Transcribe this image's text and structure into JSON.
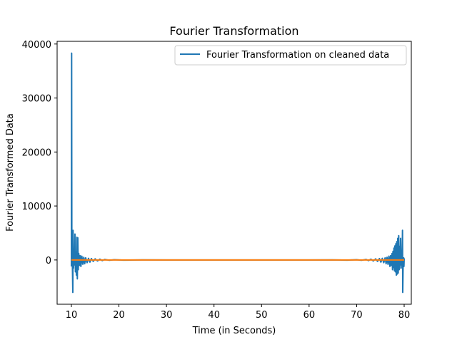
{
  "chart_data": {
    "type": "line",
    "title": "Fourier Transformation",
    "xlabel": "Time (in Seconds)",
    "ylabel": "Fourier Transformed Data",
    "xlim": [
      7,
      81.5
    ],
    "ylim": [
      -8200,
      40500
    ],
    "xticks": [
      10,
      20,
      30,
      40,
      50,
      60,
      70,
      80
    ],
    "yticks": [
      0,
      10000,
      20000,
      30000,
      40000
    ],
    "grid": false,
    "legend_position": "top-right",
    "series": [
      {
        "name": "Fourier Transformation on cleaned data",
        "color": "#1f77b4",
        "points": [
          [
            10.0,
            -1200
          ],
          [
            10.05,
            38300
          ],
          [
            10.1,
            400
          ],
          [
            10.15,
            -800
          ],
          [
            10.2,
            200
          ],
          [
            10.3,
            -6000
          ],
          [
            10.35,
            5500
          ],
          [
            10.45,
            -1500
          ],
          [
            10.55,
            2000
          ],
          [
            10.65,
            -900
          ],
          [
            10.75,
            4800
          ],
          [
            10.85,
            -2200
          ],
          [
            10.95,
            1500
          ],
          [
            11.05,
            -2800
          ],
          [
            11.15,
            4200
          ],
          [
            11.25,
            -3500
          ],
          [
            11.35,
            4100
          ],
          [
            11.45,
            -1800
          ],
          [
            11.55,
            1200
          ],
          [
            11.7,
            -1000
          ],
          [
            11.85,
            800
          ],
          [
            12.0,
            -1200
          ],
          [
            12.2,
            700
          ],
          [
            12.4,
            -800
          ],
          [
            12.6,
            500
          ],
          [
            12.8,
            -700
          ],
          [
            13.0,
            400
          ],
          [
            13.3,
            -500
          ],
          [
            13.6,
            300
          ],
          [
            13.9,
            -400
          ],
          [
            14.2,
            250
          ],
          [
            14.6,
            -250
          ],
          [
            15.0,
            200
          ],
          [
            15.5,
            -180
          ],
          [
            16.0,
            150
          ],
          [
            16.5,
            -120
          ],
          [
            17.0,
            100
          ],
          [
            18.0,
            -60
          ],
          [
            19.0,
            50
          ],
          [
            21.0,
            -30
          ],
          [
            25.0,
            20
          ],
          [
            30.0,
            0
          ],
          [
            40.0,
            0
          ],
          [
            50.0,
            0
          ],
          [
            60.0,
            0
          ],
          [
            65.0,
            20
          ],
          [
            68.0,
            -30
          ],
          [
            70.0,
            50
          ],
          [
            71.0,
            -60
          ],
          [
            72.0,
            100
          ],
          [
            72.5,
            -120
          ],
          [
            73.0,
            150
          ],
          [
            73.5,
            -180
          ],
          [
            74.0,
            200
          ],
          [
            74.4,
            -250
          ],
          [
            74.8,
            250
          ],
          [
            75.1,
            -400
          ],
          [
            75.4,
            300
          ],
          [
            75.7,
            -500
          ],
          [
            76.0,
            400
          ],
          [
            76.2,
            -700
          ],
          [
            76.4,
            500
          ],
          [
            76.6,
            -800
          ],
          [
            76.8,
            700
          ],
          [
            77.0,
            -1200
          ],
          [
            77.15,
            800
          ],
          [
            77.3,
            -1000
          ],
          [
            77.45,
            1200
          ],
          [
            77.55,
            -1800
          ],
          [
            77.65,
            1600
          ],
          [
            77.75,
            -1400
          ],
          [
            77.85,
            2200
          ],
          [
            77.95,
            -2000
          ],
          [
            78.05,
            2600
          ],
          [
            78.15,
            -2200
          ],
          [
            78.25,
            3000
          ],
          [
            78.35,
            -2800
          ],
          [
            78.45,
            3400
          ],
          [
            78.55,
            -2600
          ],
          [
            78.65,
            4000
          ],
          [
            78.75,
            -2400
          ],
          [
            78.85,
            4500
          ],
          [
            78.95,
            -1800
          ],
          [
            79.05,
            2500
          ],
          [
            79.15,
            -1500
          ],
          [
            79.25,
            4000
          ],
          [
            79.35,
            -900
          ],
          [
            79.45,
            1200
          ],
          [
            79.55,
            -1500
          ],
          [
            79.65,
            5500
          ],
          [
            79.7,
            -6000
          ],
          [
            79.8,
            200
          ],
          [
            79.85,
            -800
          ],
          [
            79.9,
            400
          ],
          [
            79.95,
            -1200
          ],
          [
            80.0,
            300
          ]
        ]
      },
      {
        "name": "",
        "color": "#ff7f0e",
        "points": [
          [
            10.0,
            0
          ],
          [
            80.0,
            0
          ]
        ]
      }
    ]
  }
}
